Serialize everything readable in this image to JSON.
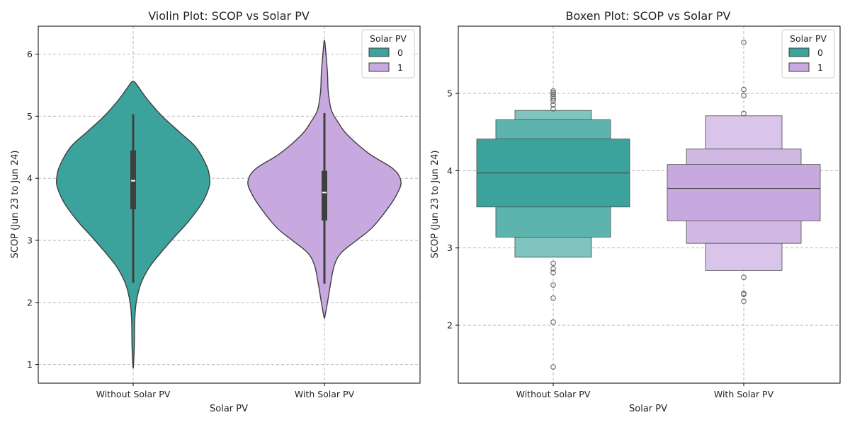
{
  "chart_data": [
    {
      "type": "violin",
      "title": "Violin Plot: SCOP vs Solar PV",
      "xlabel": "Solar PV",
      "ylabel": "SCOP (Jun 23 to Jun 24)",
      "ylim": [
        0.7,
        6.45
      ],
      "yticks": [
        1,
        2,
        3,
        4,
        5,
        6
      ],
      "grid": true,
      "categories": [
        "Without Solar PV",
        "With Solar PV"
      ],
      "legend": {
        "title": "Solar PV",
        "entries": [
          "0",
          "1"
        ],
        "placement": "top-right"
      },
      "colors": {
        "0": "#3ba39b",
        "1": "#c8a9df"
      },
      "series": [
        {
          "name": "0",
          "category": "Without Solar PV",
          "min": 0.95,
          "max": 5.55,
          "q1": 3.5,
          "median": 3.96,
          "q3": 4.45,
          "whisker_low": 2.32,
          "whisker_high": 5.03,
          "density": [
            [
              0.95,
              0.003
            ],
            [
              1.3,
              0.015
            ],
            [
              1.7,
              0.02
            ],
            [
              2.0,
              0.04
            ],
            [
              2.3,
              0.1
            ],
            [
              2.6,
              0.23
            ],
            [
              3.0,
              0.5
            ],
            [
              3.3,
              0.72
            ],
            [
              3.6,
              0.9
            ],
            [
              3.85,
              0.99
            ],
            [
              4.0,
              1.0
            ],
            [
              4.2,
              0.96
            ],
            [
              4.5,
              0.82
            ],
            [
              4.75,
              0.6
            ],
            [
              5.0,
              0.38
            ],
            [
              5.25,
              0.2
            ],
            [
              5.45,
              0.08
            ],
            [
              5.55,
              0.02
            ]
          ]
        },
        {
          "name": "1",
          "category": "With Solar PV",
          "min": 1.75,
          "max": 6.2,
          "q1": 3.32,
          "median": 3.77,
          "q3": 4.12,
          "whisker_low": 2.3,
          "whisker_high": 5.05,
          "density": [
            [
              1.75,
              0.003
            ],
            [
              2.0,
              0.04
            ],
            [
              2.3,
              0.08
            ],
            [
              2.6,
              0.13
            ],
            [
              2.8,
              0.22
            ],
            [
              3.0,
              0.42
            ],
            [
              3.2,
              0.62
            ],
            [
              3.5,
              0.82
            ],
            [
              3.75,
              0.95
            ],
            [
              3.95,
              1.0
            ],
            [
              4.15,
              0.9
            ],
            [
              4.4,
              0.58
            ],
            [
              4.7,
              0.3
            ],
            [
              4.9,
              0.18
            ],
            [
              5.1,
              0.09
            ],
            [
              5.4,
              0.05
            ],
            [
              5.7,
              0.04
            ],
            [
              6.0,
              0.02
            ],
            [
              6.2,
              0.005
            ]
          ]
        }
      ]
    },
    {
      "type": "boxen",
      "title": "Boxen Plot: SCOP vs Solar PV",
      "xlabel": "Solar PV",
      "ylabel": "SCOP (Jun 23 to Jun 24)",
      "ylim": [
        1.25,
        5.87
      ],
      "yticks": [
        2,
        3,
        4,
        5
      ],
      "grid": true,
      "categories": [
        "Without Solar PV",
        "With Solar PV"
      ],
      "legend": {
        "title": "Solar PV",
        "entries": [
          "0",
          "1"
        ],
        "placement": "top-right"
      },
      "colors": {
        "0": "#3ba39b",
        "1": "#c8a9df"
      },
      "series": [
        {
          "name": "0",
          "category": "Without Solar PV",
          "median": 3.97,
          "levels": [
            [
              3.53,
              4.41
            ],
            [
              3.14,
              4.66
            ],
            [
              2.88,
              4.78
            ]
          ],
          "outliers": [
            4.8,
            4.85,
            4.9,
            4.93,
            4.96,
            4.99,
            5.01,
            5.03,
            2.8,
            2.73,
            2.68,
            2.52,
            2.35,
            2.04,
            1.46
          ]
        },
        {
          "name": "1",
          "category": "With Solar PV",
          "median": 3.77,
          "levels": [
            [
              3.35,
              4.08
            ],
            [
              3.06,
              4.28
            ],
            [
              2.71,
              4.71
            ]
          ],
          "outliers": [
            4.74,
            4.97,
            5.05,
            5.66,
            2.62,
            2.41,
            2.4,
            2.31
          ]
        }
      ]
    }
  ]
}
